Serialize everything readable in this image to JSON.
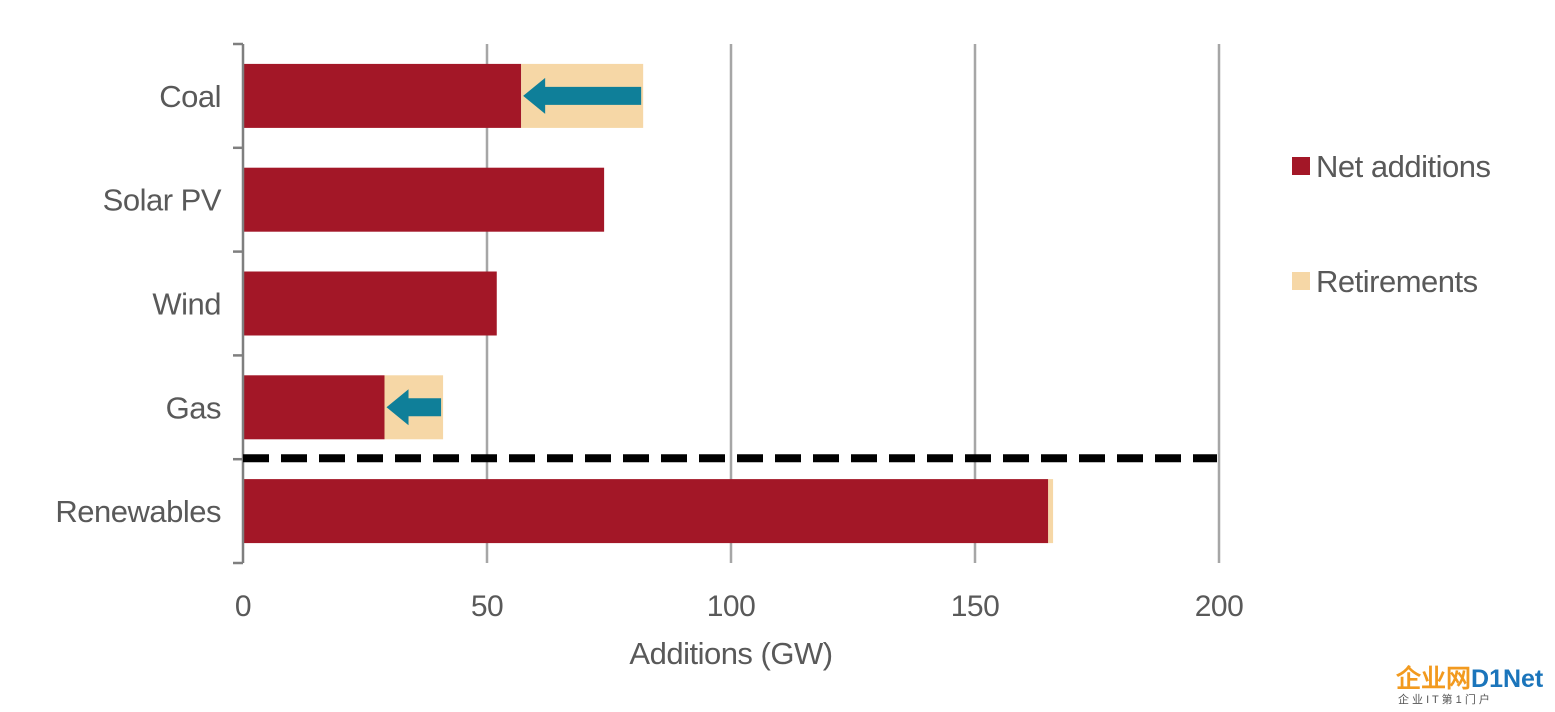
{
  "chart_data": {
    "type": "bar",
    "orientation": "horizontal",
    "stacked": true,
    "categories": [
      "Coal",
      "Solar PV",
      "Wind",
      "Gas",
      "Renewables"
    ],
    "series": [
      {
        "name": "Net additions",
        "values": [
          57,
          74,
          52,
          29,
          165
        ],
        "color": "#a31727"
      },
      {
        "name": "Retirements",
        "values": [
          25,
          0,
          0,
          12,
          1
        ],
        "color": "#f6d7a6"
      }
    ],
    "xlabel": "Additions (GW)",
    "xlim": [
      0,
      200
    ],
    "xticks": [
      0,
      50,
      100,
      150,
      200
    ],
    "xtick_labels": [
      "0",
      "50",
      "100",
      "150",
      "200"
    ],
    "grid": "vertical",
    "legend_position": "right",
    "separator": "dashed line between Gas and Renewables",
    "arrows": [
      {
        "category": "Coal",
        "from": 82,
        "to": 57,
        "color": "#0f7f99"
      },
      {
        "category": "Gas",
        "from": 41,
        "to": 29,
        "color": "#0f7f99"
      }
    ]
  },
  "watermark": {
    "main_a": "企业网",
    "main_b": "D1Net",
    "sub": "企 业 I T 第 1 门 户",
    "color_a": "#f29a1f",
    "color_b": "#1b75bb"
  }
}
